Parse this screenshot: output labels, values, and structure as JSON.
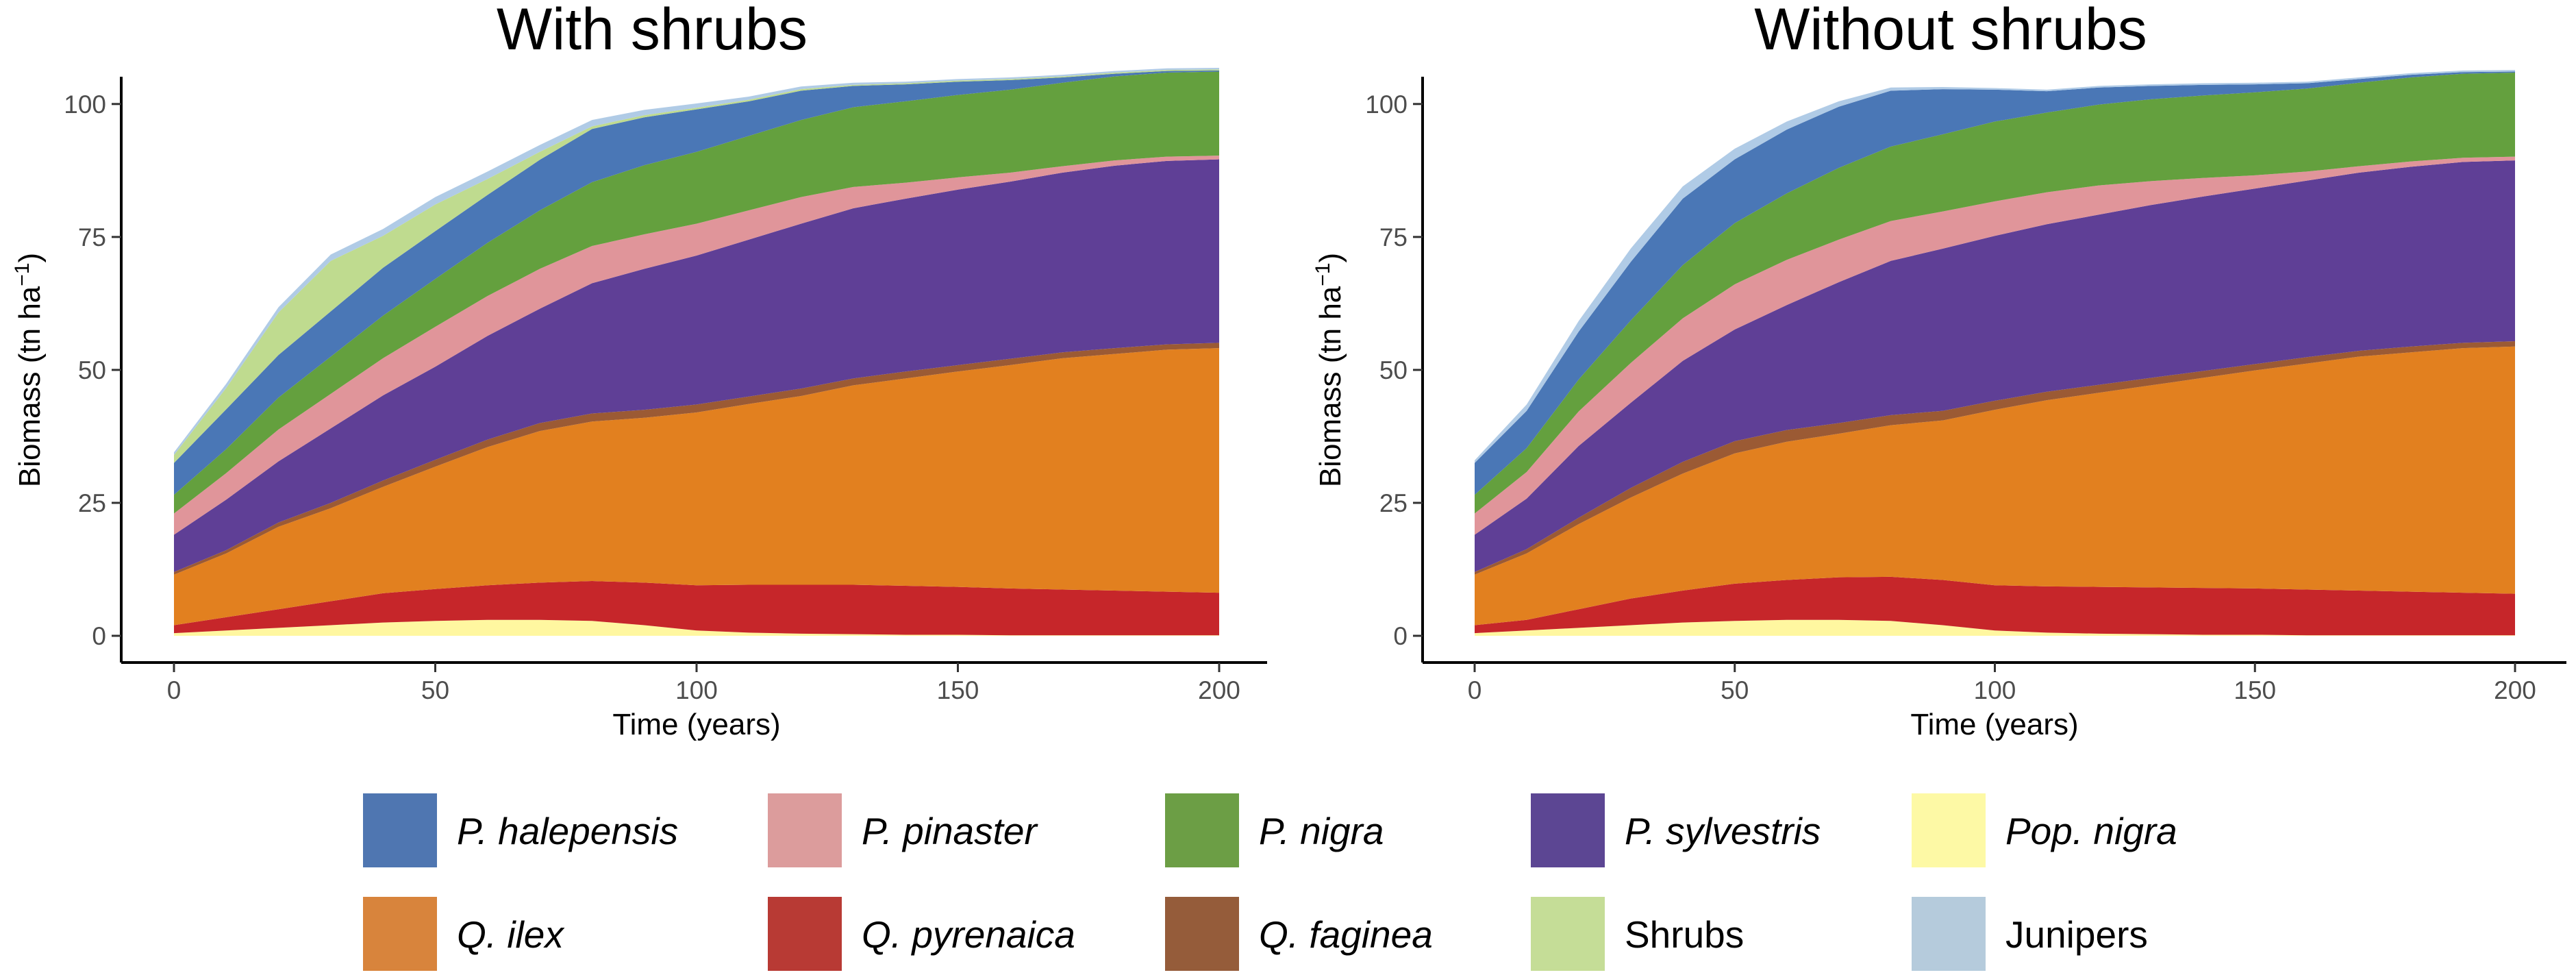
{
  "chart_data": [
    {
      "type": "area",
      "title": "With shrubs",
      "xlabel": "Time (years)",
      "ylabel_main": "Biomass (tn ha",
      "ylabel_sup": "−1",
      "ylabel_close": ")",
      "xlim": [
        0,
        200
      ],
      "ylim": [
        0,
        105
      ],
      "xticks": [
        0,
        50,
        100,
        150,
        200
      ],
      "yticks": [
        0,
        25,
        50,
        75,
        100
      ],
      "x": [
        0,
        10,
        20,
        30,
        40,
        50,
        60,
        70,
        80,
        90,
        100,
        110,
        120,
        130,
        140,
        150,
        160,
        170,
        180,
        190,
        200
      ],
      "series": [
        {
          "key": "pop_nigra",
          "name": "Pop. nigra",
          "color": "#fff7a0",
          "values": [
            0.5,
            1.0,
            1.5,
            2.0,
            2.5,
            2.8,
            3.0,
            3.0,
            2.8,
            2.0,
            1.0,
            0.6,
            0.4,
            0.3,
            0.2,
            0.2,
            0.1,
            0.1,
            0.1,
            0.1,
            0.1
          ]
        },
        {
          "key": "q_pyrenaica",
          "name": "Q. pyrenaica",
          "color": "#c6262a",
          "values": [
            1.5,
            2.5,
            3.5,
            4.5,
            5.5,
            6.0,
            6.5,
            7.0,
            7.5,
            8.0,
            8.5,
            9.0,
            9.2,
            9.3,
            9.2,
            9.0,
            8.8,
            8.6,
            8.4,
            8.2,
            8.0
          ]
        },
        {
          "key": "q_ilex",
          "name": "Q. ilex",
          "color": "#e2801f",
          "values": [
            9.5,
            12.0,
            15.5,
            17.5,
            20.0,
            23.0,
            26.0,
            28.5,
            30.0,
            31.0,
            32.5,
            34.0,
            35.5,
            37.5,
            39.0,
            40.5,
            42.0,
            43.5,
            44.5,
            45.5,
            46.0
          ]
        },
        {
          "key": "q_faginea",
          "name": "Q. faginea",
          "color": "#9b5a34",
          "values": [
            0.5,
            0.6,
            0.8,
            1.0,
            1.2,
            1.3,
            1.4,
            1.5,
            1.5,
            1.5,
            1.5,
            1.4,
            1.4,
            1.3,
            1.3,
            1.2,
            1.2,
            1.1,
            1.1,
            1.0,
            1.0
          ]
        },
        {
          "key": "p_sylvestris",
          "name": "P. sylvestris",
          "color": "#5f3f96",
          "values": [
            7.0,
            9.5,
            11.5,
            14.0,
            16.0,
            17.5,
            19.5,
            21.5,
            24.5,
            26.5,
            28.0,
            29.5,
            31.0,
            32.0,
            32.5,
            33.0,
            33.3,
            33.8,
            34.3,
            34.5,
            34.5
          ]
        },
        {
          "key": "p_pinaster",
          "name": "P. pinaster",
          "color": "#e0959a",
          "values": [
            4.0,
            5.0,
            6.0,
            6.5,
            7.0,
            7.5,
            7.5,
            7.5,
            7.0,
            6.5,
            6.0,
            5.5,
            5.0,
            4.0,
            3.0,
            2.3,
            1.7,
            1.2,
            1.0,
            0.8,
            0.7
          ]
        },
        {
          "key": "p_nigra",
          "name": "P. nigra",
          "color": "#64a03e",
          "values": [
            3.5,
            4.5,
            6.0,
            7.0,
            8.0,
            9.0,
            10.0,
            11.0,
            12.0,
            13.0,
            13.5,
            14.0,
            14.5,
            15.0,
            15.3,
            15.5,
            15.6,
            15.7,
            15.8,
            15.8,
            15.8
          ]
        },
        {
          "key": "p_halepensis",
          "name": "P. halepensis",
          "color": "#4a77b6",
          "values": [
            6.0,
            7.5,
            8.0,
            8.5,
            9.0,
            9.0,
            9.0,
            9.5,
            10.0,
            9.0,
            8.0,
            6.5,
            5.5,
            4.0,
            3.2,
            2.5,
            1.8,
            1.0,
            0.5,
            0.3,
            0.2
          ]
        },
        {
          "key": "shrubs",
          "name": "Shrubs",
          "color": "#bfdb8f",
          "values": [
            1.5,
            4.0,
            8.0,
            9.5,
            6.0,
            5.0,
            3.0,
            1.5,
            0.5,
            0.4,
            0.3,
            0.3,
            0.3,
            0.2,
            0.2,
            0.2,
            0.2,
            0.2,
            0.2,
            0.2,
            0.2
          ]
        },
        {
          "key": "junipers",
          "name": "Junipers",
          "color": "#b0cbe6",
          "values": [
            0.5,
            0.8,
            1.0,
            1.2,
            1.3,
            1.4,
            1.4,
            1.3,
            1.2,
            1.0,
            0.8,
            0.6,
            0.5,
            0.4,
            0.3,
            0.3,
            0.3,
            0.3,
            0.3,
            0.3,
            0.3
          ]
        }
      ]
    },
    {
      "type": "area",
      "title": "Without shrubs",
      "xlabel": "Time (years)",
      "ylabel_main": "Biomass (tn ha",
      "ylabel_sup": "−1",
      "ylabel_close": ")",
      "xlim": [
        0,
        200
      ],
      "ylim": [
        0,
        105
      ],
      "xticks": [
        0,
        50,
        100,
        150,
        200
      ],
      "yticks": [
        0,
        25,
        50,
        75,
        100
      ],
      "x": [
        0,
        10,
        20,
        30,
        40,
        50,
        60,
        70,
        80,
        90,
        100,
        110,
        120,
        130,
        140,
        150,
        160,
        170,
        180,
        190,
        200
      ],
      "series": [
        {
          "key": "pop_nigra",
          "name": "Pop. nigra",
          "color": "#fff7a0",
          "values": [
            0.5,
            1.0,
            1.5,
            2.0,
            2.5,
            2.8,
            3.0,
            3.0,
            2.8,
            2.0,
            1.0,
            0.6,
            0.4,
            0.3,
            0.2,
            0.2,
            0.1,
            0.1,
            0.1,
            0.1,
            0.1
          ]
        },
        {
          "key": "q_pyrenaica",
          "name": "Q. pyrenaica",
          "color": "#c6262a",
          "values": [
            1.5,
            2.0,
            3.5,
            5.0,
            6.0,
            7.0,
            7.5,
            8.0,
            8.3,
            8.5,
            8.5,
            8.7,
            8.8,
            8.8,
            8.8,
            8.7,
            8.6,
            8.4,
            8.2,
            8.0,
            7.8
          ]
        },
        {
          "key": "q_ilex",
          "name": "Q. ilex",
          "color": "#e2801f",
          "values": [
            9.5,
            12.5,
            16.0,
            19.0,
            22.0,
            24.5,
            26.0,
            27.0,
            28.5,
            30.0,
            33.0,
            35.0,
            36.5,
            38.0,
            39.5,
            41.0,
            42.5,
            44.0,
            45.0,
            46.0,
            46.5
          ]
        },
        {
          "key": "q_faginea",
          "name": "Q. faginea",
          "color": "#9b5a34",
          "values": [
            0.5,
            0.8,
            1.2,
            1.8,
            2.2,
            2.3,
            2.2,
            2.0,
            1.9,
            1.8,
            1.7,
            1.6,
            1.5,
            1.4,
            1.3,
            1.2,
            1.2,
            1.1,
            1.1,
            1.0,
            1.0
          ]
        },
        {
          "key": "p_sylvestris",
          "name": "P. sylvestris",
          "color": "#5f3f96",
          "values": [
            7.0,
            9.5,
            13.5,
            16.0,
            19.0,
            21.0,
            23.5,
            26.5,
            29.0,
            30.5,
            31.0,
            31.5,
            32.0,
            32.5,
            32.8,
            33.0,
            33.2,
            33.5,
            33.8,
            34.0,
            34.0
          ]
        },
        {
          "key": "p_pinaster",
          "name": "P. pinaster",
          "color": "#e0959a",
          "values": [
            4.0,
            5.0,
            6.5,
            7.5,
            8.0,
            8.5,
            8.5,
            8.0,
            7.5,
            7.0,
            6.5,
            6.0,
            5.5,
            4.5,
            3.5,
            2.5,
            1.7,
            1.2,
            1.0,
            0.8,
            0.7
          ]
        },
        {
          "key": "p_nigra",
          "name": "P. nigra",
          "color": "#64a03e",
          "values": [
            3.5,
            4.5,
            6.0,
            8.0,
            10.0,
            11.5,
            12.5,
            13.5,
            14.0,
            14.5,
            15.0,
            15.0,
            15.2,
            15.4,
            15.5,
            15.6,
            15.6,
            15.7,
            15.8,
            15.8,
            15.8
          ]
        },
        {
          "key": "p_halepensis",
          "name": "P. halepensis",
          "color": "#4a77b6",
          "values": [
            6.0,
            7.0,
            9.0,
            11.0,
            12.5,
            12.0,
            12.0,
            11.5,
            10.5,
            8.5,
            6.0,
            4.0,
            3.2,
            2.5,
            2.0,
            1.5,
            1.0,
            0.7,
            0.5,
            0.3,
            0.2
          ]
        },
        {
          "key": "shrubs",
          "name": "Shrubs",
          "color": "#bfdb8f",
          "values": [
            0,
            0,
            0,
            0,
            0,
            0,
            0,
            0,
            0,
            0,
            0,
            0,
            0,
            0,
            0,
            0,
            0,
            0,
            0,
            0,
            0
          ]
        },
        {
          "key": "junipers",
          "name": "Junipers",
          "color": "#b0cbe6",
          "values": [
            0.5,
            1.2,
            2.0,
            2.5,
            2.3,
            2.0,
            1.5,
            1.0,
            0.6,
            0.4,
            0.3,
            0.3,
            0.3,
            0.3,
            0.3,
            0.3,
            0.3,
            0.3,
            0.3,
            0.3,
            0.3
          ]
        }
      ]
    }
  ],
  "legend": {
    "placement": "bottom",
    "entries": [
      {
        "key": "p_halepensis",
        "label": "P. halepensis",
        "color": "#4f76b1",
        "italic": true
      },
      {
        "key": "p_pinaster",
        "label": "P. pinaster",
        "color": "#dc9c9c",
        "italic": true
      },
      {
        "key": "p_nigra",
        "label": "P. nigra",
        "color": "#6c9e45",
        "italic": true
      },
      {
        "key": "p_sylvestris",
        "label": "P. sylvestris",
        "color": "#5c4693",
        "italic": true
      },
      {
        "key": "pop_nigra",
        "label": "Pop. nigra",
        "color": "#fdf9a5",
        "italic": true
      },
      {
        "key": "q_ilex",
        "label": "Q. ilex",
        "color": "#d8843c",
        "italic": true
      },
      {
        "key": "q_pyrenaica",
        "label": "Q. pyrenaica",
        "color": "#b83a34",
        "italic": true
      },
      {
        "key": "q_faginea",
        "label": "Q. faginea",
        "color": "#955c3a",
        "italic": true
      },
      {
        "key": "shrubs",
        "label": "Shrubs",
        "color": "#c5dd97",
        "italic": false
      },
      {
        "key": "junipers",
        "label": "Junipers",
        "color": "#b5cbdc",
        "italic": false
      }
    ]
  }
}
